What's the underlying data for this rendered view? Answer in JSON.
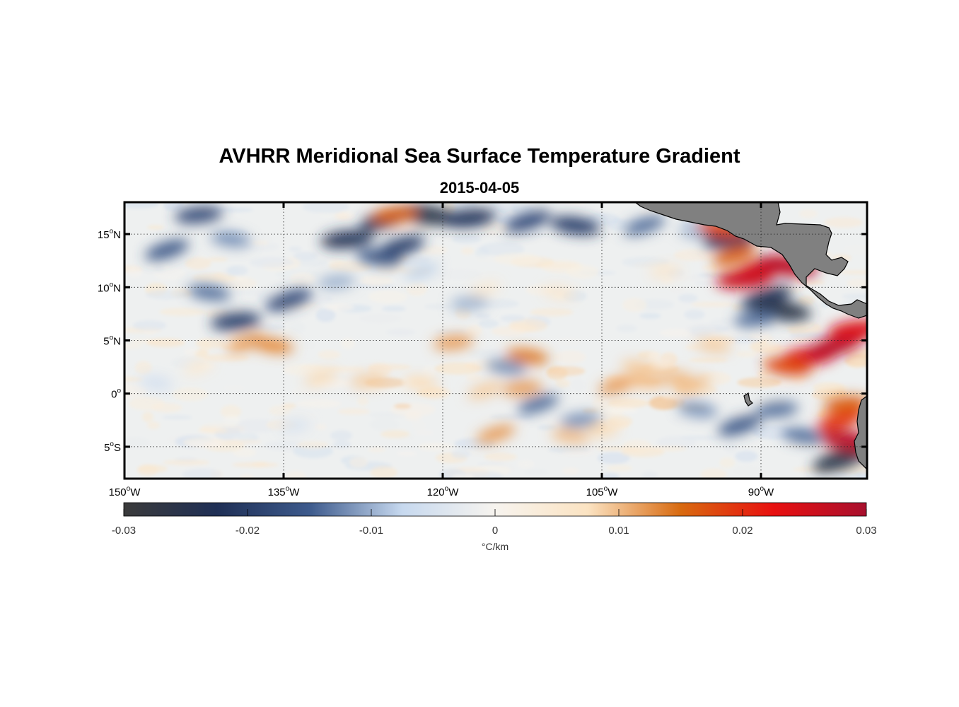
{
  "title": "AVHRR Meridional Sea Surface Temperature Gradient",
  "subtitle": "2015-04-05",
  "map": {
    "extent": {
      "lon": [
        -150,
        -80
      ],
      "lat": [
        -8,
        18
      ]
    },
    "lon_ticks": [
      {
        "value": -150,
        "deg": "150",
        "hemi": "W"
      },
      {
        "value": -135,
        "deg": "135",
        "hemi": "W"
      },
      {
        "value": -120,
        "deg": "120",
        "hemi": "W"
      },
      {
        "value": -105,
        "deg": "105",
        "hemi": "W"
      },
      {
        "value": -90,
        "deg": "90",
        "hemi": "W"
      }
    ],
    "lat_ticks": [
      {
        "value": 15,
        "deg": "15",
        "hemi": "N"
      },
      {
        "value": 10,
        "deg": "10",
        "hemi": "N"
      },
      {
        "value": 5,
        "deg": "5",
        "hemi": "N"
      },
      {
        "value": 0,
        "deg": "0",
        "hemi": ""
      },
      {
        "value": -5,
        "deg": "5",
        "hemi": "S"
      }
    ],
    "grid": "dotted",
    "land_color": "#808080",
    "ocean_features": [
      {
        "lon": -125.2,
        "lat": 16.5,
        "v": -0.024
      },
      {
        "lon": -121.5,
        "lat": 16.8,
        "v": -0.026
      },
      {
        "lon": -117.5,
        "lat": 16.5,
        "v": -0.022
      },
      {
        "lon": -112.0,
        "lat": 16.2,
        "v": -0.018
      },
      {
        "lon": -107.5,
        "lat": 15.8,
        "v": -0.02
      },
      {
        "lon": -129.0,
        "lat": 14.5,
        "v": -0.022
      },
      {
        "lon": -124.0,
        "lat": 13.8,
        "v": -0.02
      },
      {
        "lon": -126.0,
        "lat": 12.8,
        "v": -0.016
      },
      {
        "lon": -143.0,
        "lat": 16.8,
        "v": -0.018
      },
      {
        "lon": -146.0,
        "lat": 13.5,
        "v": -0.016
      },
      {
        "lon": -140.0,
        "lat": 14.5,
        "v": -0.012
      },
      {
        "lon": -139.5,
        "lat": 6.8,
        "v": -0.02
      },
      {
        "lon": -134.5,
        "lat": 8.8,
        "v": -0.018
      },
      {
        "lon": -142.0,
        "lat": 9.5,
        "v": -0.014
      },
      {
        "lon": -130.0,
        "lat": 10.5,
        "v": -0.01
      },
      {
        "lon": -101.0,
        "lat": 15.8,
        "v": -0.014
      },
      {
        "lon": -96.0,
        "lat": 15.2,
        "v": -0.01
      },
      {
        "lon": -93.0,
        "lat": 14.5,
        "v": -0.022
      },
      {
        "lon": -89.5,
        "lat": 9.0,
        "v": -0.022
      },
      {
        "lon": -88.0,
        "lat": 7.8,
        "v": -0.026
      },
      {
        "lon": -90.5,
        "lat": 7.0,
        "v": -0.014
      },
      {
        "lon": -82.5,
        "lat": -6.2,
        "v": -0.026
      },
      {
        "lon": -86.0,
        "lat": -4.0,
        "v": -0.014
      },
      {
        "lon": -88.5,
        "lat": -1.5,
        "v": -0.014
      },
      {
        "lon": -92.0,
        "lat": -3.0,
        "v": -0.016
      },
      {
        "lon": -96.0,
        "lat": -1.5,
        "v": -0.012
      },
      {
        "lon": -107.0,
        "lat": -2.5,
        "v": -0.012
      },
      {
        "lon": -111.0,
        "lat": -1.0,
        "v": -0.014
      },
      {
        "lon": -114.0,
        "lat": 2.5,
        "v": -0.012
      },
      {
        "lon": -117.5,
        "lat": 8.5,
        "v": -0.01
      },
      {
        "lon": -122.0,
        "lat": 11.5,
        "v": -0.008
      },
      {
        "lon": -147.0,
        "lat": 1.0,
        "v": -0.006
      },
      {
        "lon": -134.0,
        "lat": -3.0,
        "v": -0.005
      },
      {
        "lon": -90.0,
        "lat": 11.8,
        "v": 0.024
      },
      {
        "lon": -87.5,
        "lat": 12.0,
        "v": 0.028
      },
      {
        "lon": -91.5,
        "lat": 10.8,
        "v": 0.026
      },
      {
        "lon": -92.5,
        "lat": 13.0,
        "v": 0.016
      },
      {
        "lon": -93.8,
        "lat": 15.5,
        "v": 0.018
      },
      {
        "lon": -85.5,
        "lat": 3.5,
        "v": 0.024
      },
      {
        "lon": -83.0,
        "lat": 4.5,
        "v": 0.028
      },
      {
        "lon": -87.5,
        "lat": 2.5,
        "v": 0.018
      },
      {
        "lon": -81.0,
        "lat": 6.0,
        "v": 0.024
      },
      {
        "lon": -82.5,
        "lat": -2.5,
        "v": 0.02
      },
      {
        "lon": -81.5,
        "lat": -4.5,
        "v": 0.028
      },
      {
        "lon": -82.0,
        "lat": -1.0,
        "v": 0.016
      },
      {
        "lon": -103.5,
        "lat": 0.8,
        "v": 0.012
      },
      {
        "lon": -101.0,
        "lat": 1.2,
        "v": 0.01
      },
      {
        "lon": -98.5,
        "lat": 1.5,
        "v": 0.01
      },
      {
        "lon": -96.5,
        "lat": 0.8,
        "v": 0.01
      },
      {
        "lon": -101.5,
        "lat": 2.5,
        "v": 0.009
      },
      {
        "lon": -112.5,
        "lat": 0.5,
        "v": 0.012
      },
      {
        "lon": -116.0,
        "lat": 0.3,
        "v": 0.009
      },
      {
        "lon": -112.0,
        "lat": 3.5,
        "v": 0.014
      },
      {
        "lon": -119.0,
        "lat": 4.8,
        "v": 0.012
      },
      {
        "lon": -138.5,
        "lat": 4.8,
        "v": 0.012
      },
      {
        "lon": -136.0,
        "lat": 4.5,
        "v": 0.013
      },
      {
        "lon": -127.0,
        "lat": 1.2,
        "v": 0.009
      },
      {
        "lon": -131.5,
        "lat": 1.5,
        "v": 0.008
      },
      {
        "lon": -122.0,
        "lat": 1.0,
        "v": 0.008
      },
      {
        "lon": -124.5,
        "lat": 16.8,
        "v": 0.016
      },
      {
        "lon": -115.0,
        "lat": -3.8,
        "v": 0.012
      },
      {
        "lon": -108.0,
        "lat": -4.0,
        "v": 0.01
      },
      {
        "lon": -105.0,
        "lat": -3.5,
        "v": 0.008
      },
      {
        "lon": -143.0,
        "lat": 2.5,
        "v": 0.005
      },
      {
        "lon": -109.0,
        "lat": 9.5,
        "v": 0.006
      },
      {
        "lon": -99.0,
        "lat": 11.5,
        "v": 0.006
      },
      {
        "lon": -116.0,
        "lat": 9.8,
        "v": 0.005
      },
      {
        "lon": -94.5,
        "lat": 4.5,
        "v": 0.009
      }
    ]
  },
  "colorbar": {
    "range": [
      -0.03,
      0.03
    ],
    "ticks": [
      "-0.03",
      "-0.02",
      "-0.01",
      "0",
      "0.01",
      "0.02",
      "0.03"
    ],
    "label": "°C/km",
    "colormap": [
      "#3b3b3b",
      "#1f2f55",
      "#3d5a8c",
      "#c7d9ef",
      "#f7f4ef",
      "#fbe3c2",
      "#d86a10",
      "#e81010",
      "#a8102e"
    ]
  }
}
